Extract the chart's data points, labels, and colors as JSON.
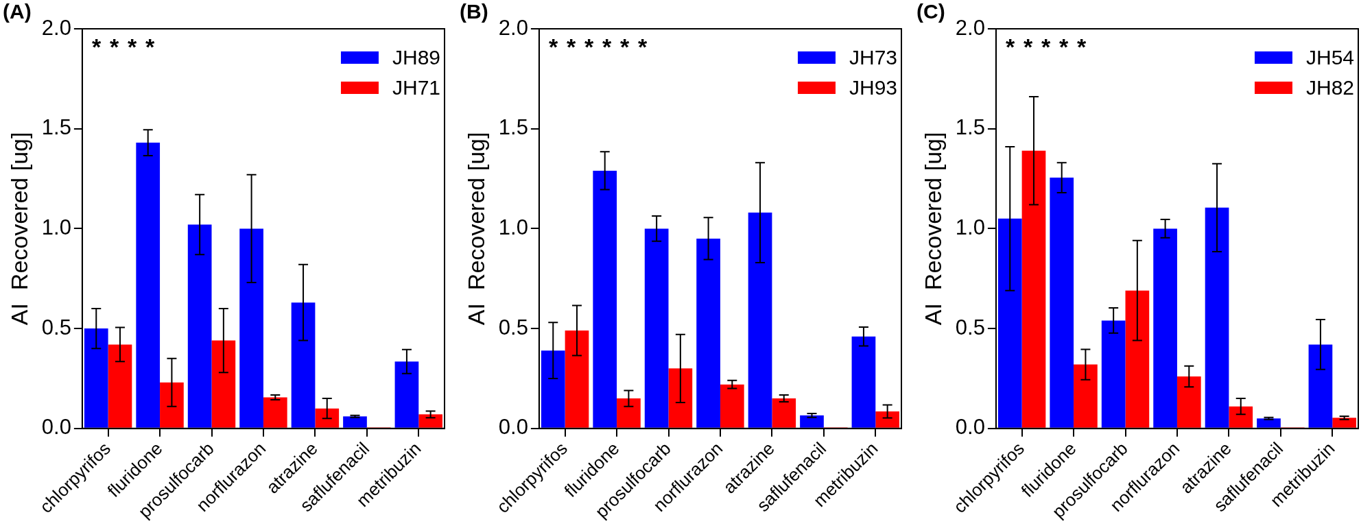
{
  "chart_data": [
    {
      "type": "bar",
      "title": "(A)",
      "ylabel": "AI  Recovered [ug]",
      "categories": [
        "chlorpyrifos",
        "fluridone",
        "prosulfocarb",
        "norflurazon",
        "atrazine",
        "saflufenacil",
        "metribuzin"
      ],
      "series": [
        {
          "name": "JH89",
          "color": "#0000ff",
          "values": [
            0.5,
            1.43,
            1.02,
            1.0,
            0.63,
            0.06,
            0.335
          ],
          "errors": [
            0.1,
            0.065,
            0.15,
            0.27,
            0.19,
            0.005,
            0.06
          ]
        },
        {
          "name": "JH71",
          "color": "#ff0000",
          "values": [
            0.42,
            0.23,
            0.44,
            0.155,
            0.1,
            0.005,
            0.07
          ],
          "errors": [
            0.085,
            0.12,
            0.16,
            0.012,
            0.05,
            null,
            0.017
          ]
        }
      ],
      "ylim": [
        0,
        2
      ],
      "yticks": [
        {
          "value": 0,
          "label": "0.0"
        },
        {
          "value": 0.5,
          "label": "0.5"
        },
        {
          "value": 1,
          "label": "1.0"
        },
        {
          "value": 1.5,
          "label": "1.5"
        },
        {
          "value": 2,
          "label": "2.0"
        }
      ],
      "grid": false,
      "legend": "top right",
      "annotations": [
        "*",
        "*",
        "*",
        "*"
      ]
    },
    {
      "type": "bar",
      "title": "(B)",
      "ylabel": "AI  Recovered [ug]",
      "categories": [
        "chlorpyrifos",
        "fluridone",
        "prosulfocarb",
        "norflurazon",
        "atrazine",
        "saflufenacil",
        "metribuzin"
      ],
      "series": [
        {
          "name": "JH73",
          "color": "#0000ff",
          "values": [
            0.39,
            1.29,
            1.0,
            0.95,
            1.08,
            0.065,
            0.46
          ],
          "errors": [
            0.14,
            0.095,
            0.063,
            0.105,
            0.25,
            0.01,
            0.047
          ]
        },
        {
          "name": "JH93",
          "color": "#ff0000",
          "values": [
            0.49,
            0.15,
            0.3,
            0.22,
            0.15,
            0.005,
            0.085
          ],
          "errors": [
            0.125,
            0.04,
            0.17,
            0.02,
            0.017,
            null,
            0.033
          ]
        }
      ],
      "ylim": [
        0,
        2
      ],
      "yticks": [
        {
          "value": 0,
          "label": "0.0"
        },
        {
          "value": 0.5,
          "label": "0.5"
        },
        {
          "value": 1,
          "label": "1.0"
        },
        {
          "value": 1.5,
          "label": "1.5"
        },
        {
          "value": 2,
          "label": "2.0"
        }
      ],
      "grid": false,
      "legend": "top right",
      "annotations": [
        "*",
        "*",
        "*",
        "*",
        "*",
        "*"
      ]
    },
    {
      "type": "bar",
      "title": "(C)",
      "ylabel": "AI  Recovered [ug]",
      "categories": [
        "chlorpyrifos",
        "fluridone",
        "prosulfocarb",
        "norflurazon",
        "atrazine",
        "saflufenacil",
        "metribuzin"
      ],
      "series": [
        {
          "name": "JH54",
          "color": "#0000ff",
          "values": [
            1.05,
            1.255,
            0.54,
            1.0,
            1.105,
            0.05,
            0.42
          ],
          "errors": [
            0.36,
            0.075,
            0.063,
            0.046,
            0.22,
            0.005,
            0.125
          ]
        },
        {
          "name": "JH82",
          "color": "#ff0000",
          "values": [
            1.39,
            0.32,
            0.69,
            0.26,
            0.11,
            0.005,
            0.053
          ],
          "errors": [
            0.27,
            0.076,
            0.25,
            0.052,
            0.04,
            null,
            0.008
          ]
        }
      ],
      "ylim": [
        0,
        2
      ],
      "yticks": [
        {
          "value": 0,
          "label": "0.0"
        },
        {
          "value": 0.5,
          "label": "0.5"
        },
        {
          "value": 1,
          "label": "1.0"
        },
        {
          "value": 1.5,
          "label": "1.5"
        },
        {
          "value": 2,
          "label": "2.0"
        }
      ],
      "grid": false,
      "legend": "top right",
      "annotations": [
        "*",
        "*",
        "*",
        "*",
        "*"
      ]
    }
  ]
}
